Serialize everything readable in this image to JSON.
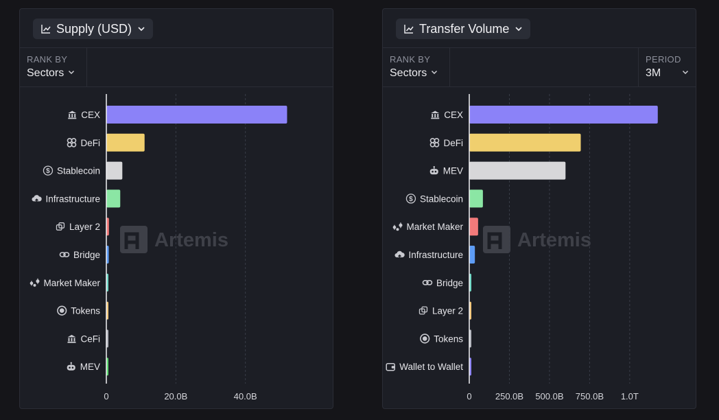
{
  "panels": [
    {
      "title": "Supply (USD)",
      "title_icon": "line-chart-icon",
      "rank_by_label": "RANK BY",
      "rank_by_value": "Sectors",
      "watermark": "Artemis"
    },
    {
      "title": "Transfer Volume",
      "title_icon": "line-chart-icon",
      "rank_by_label": "RANK BY",
      "rank_by_value": "Sectors",
      "period_label": "PERIOD",
      "period_value": "3M",
      "watermark": "Artemis"
    }
  ],
  "chart_data": [
    {
      "type": "bar",
      "orientation": "horizontal",
      "title": "Supply (USD)",
      "categories": [
        "CEX",
        "DeFi",
        "Stablecoin",
        "Infrastructure",
        "Layer 2",
        "Bridge",
        "Market Maker",
        "Tokens",
        "CeFi",
        "MEV"
      ],
      "category_icons": [
        "bank-icon",
        "defi-icon",
        "dollar-coin-icon",
        "cloud-icon",
        "layers-icon",
        "link-icon",
        "market-maker-icon",
        "token-icon",
        "bank-icon",
        "robot-icon"
      ],
      "values": [
        52.0,
        11.0,
        4.6,
        4.0,
        0.75,
        0.7,
        0.55,
        0.5,
        0.45,
        0.5
      ],
      "value_unit": "B USD",
      "colors": [
        "#8b82f8",
        "#f0cf6e",
        "#d7d7d9",
        "#8be6a4",
        "#f27a7a",
        "#5d9cf5",
        "#6fd9c6",
        "#f4c77a",
        "#b5b7bf",
        "#5fdc73"
      ],
      "xlim": [
        0,
        60
      ],
      "xticks": [
        0,
        20,
        40
      ],
      "xtick_labels": [
        "0",
        "20.0B",
        "40.0B"
      ],
      "grid": true
    },
    {
      "type": "bar",
      "orientation": "horizontal",
      "title": "Transfer Volume",
      "categories": [
        "CEX",
        "DeFi",
        "MEV",
        "Stablecoin",
        "Market Maker",
        "Infrastructure",
        "Bridge",
        "Layer 2",
        "Tokens",
        "Wallet to Wallet"
      ],
      "category_icons": [
        "bank-icon",
        "defi-icon",
        "robot-icon",
        "dollar-coin-icon",
        "market-maker-icon",
        "cloud-icon",
        "link-icon",
        "layers-icon",
        "token-icon",
        "wallet-icon"
      ],
      "values": [
        1175,
        695,
        600,
        85,
        55,
        35,
        12,
        10,
        8,
        9
      ],
      "value_unit": "B USD",
      "colors": [
        "#8b82f8",
        "#f0cf6e",
        "#d7d7d9",
        "#8be6a4",
        "#f27a7a",
        "#5d9cf5",
        "#6fd9c6",
        "#f4c77a",
        "#b5b7bf",
        "#8b82f8"
      ],
      "xlim": [
        0,
        1300
      ],
      "xticks": [
        0,
        250,
        500,
        750,
        1000
      ],
      "xtick_labels": [
        "0",
        "250.0B",
        "500.0B",
        "750.0B",
        "1.0T"
      ],
      "grid": true
    }
  ]
}
